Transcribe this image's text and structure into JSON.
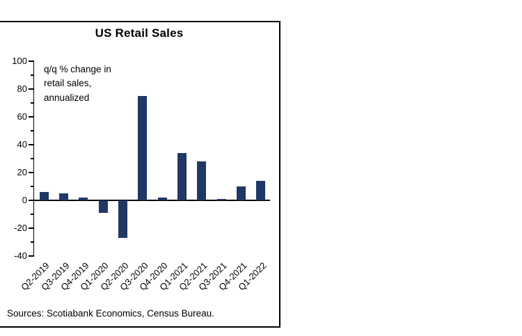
{
  "panel": {
    "title": "US Retail Sales",
    "annotation": "q/q % change in\nretail sales,\nannualized",
    "sources": "Sources: Scotiabank Economics, Census Bureau."
  },
  "colors": {
    "bar": "#1f3864",
    "axis": "#000000"
  },
  "chart_data": {
    "type": "bar",
    "title": "US Retail Sales",
    "categories": [
      "Q2-2019",
      "Q3-2019",
      "Q4-2019",
      "Q1-2020",
      "Q2-2020",
      "Q3-2020",
      "Q4-2020",
      "Q1-2021",
      "Q2-2021",
      "Q3-2021",
      "Q4-2021",
      "Q1-2022"
    ],
    "values": [
      6,
      5,
      2,
      -9,
      -27,
      75,
      2,
      34,
      28,
      1,
      10,
      14
    ],
    "xlabel": "",
    "ylabel": "",
    "ylim": [
      -40,
      100
    ],
    "yticks": [
      -40,
      -20,
      0,
      20,
      40,
      60,
      80,
      100
    ],
    "grid": false,
    "legend": null,
    "annotation": "q/q % change in retail sales, annualized"
  }
}
